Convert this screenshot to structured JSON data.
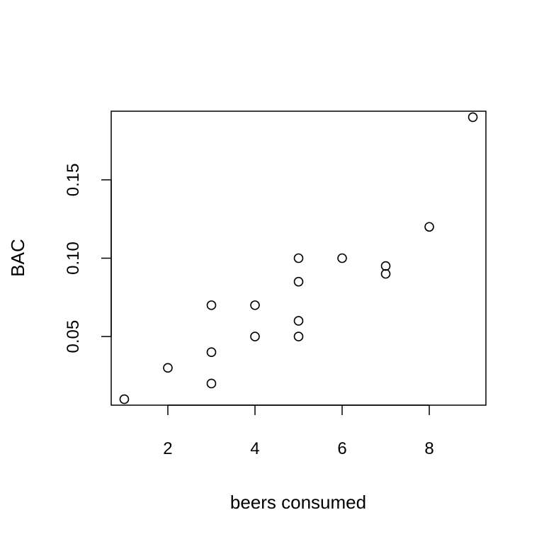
{
  "chart_data": {
    "type": "scatter",
    "title": "",
    "xlabel": "beers consumed",
    "ylabel": "BAC",
    "xlim": [
      0.7,
      9.3
    ],
    "ylim": [
      0.0062,
      0.1938
    ],
    "x_ticks": [
      2,
      4,
      6,
      8
    ],
    "y_ticks": [
      0.05,
      0.1,
      0.15
    ],
    "x_tick_labels": [
      "2",
      "4",
      "6",
      "8"
    ],
    "y_tick_labels": [
      "0.05",
      "0.10",
      "0.15"
    ],
    "grid": false,
    "legend": "none",
    "marker": "open-circle",
    "points": [
      {
        "x": 1,
        "y": 0.01
      },
      {
        "x": 2,
        "y": 0.03
      },
      {
        "x": 3,
        "y": 0.02
      },
      {
        "x": 3,
        "y": 0.04
      },
      {
        "x": 3,
        "y": 0.07
      },
      {
        "x": 4,
        "y": 0.05
      },
      {
        "x": 4,
        "y": 0.07
      },
      {
        "x": 5,
        "y": 0.05
      },
      {
        "x": 5,
        "y": 0.06
      },
      {
        "x": 5,
        "y": 0.085
      },
      {
        "x": 5,
        "y": 0.1
      },
      {
        "x": 6,
        "y": 0.1
      },
      {
        "x": 7,
        "y": 0.09
      },
      {
        "x": 7,
        "y": 0.095
      },
      {
        "x": 8,
        "y": 0.12
      },
      {
        "x": 9,
        "y": 0.19
      }
    ]
  }
}
